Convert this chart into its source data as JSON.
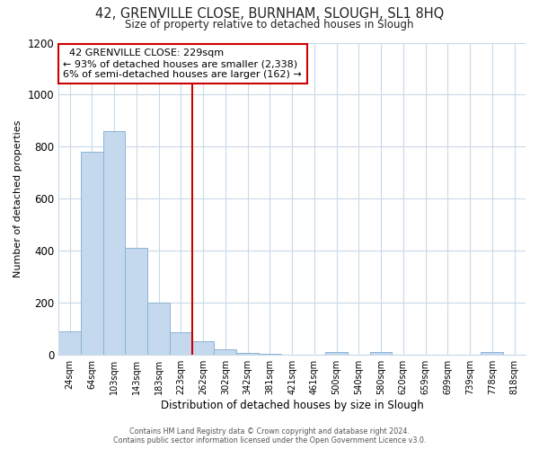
{
  "title": "42, GRENVILLE CLOSE, BURNHAM, SLOUGH, SL1 8HQ",
  "subtitle": "Size of property relative to detached houses in Slough",
  "xlabel": "Distribution of detached houses by size in Slough",
  "ylabel": "Number of detached properties",
  "annotation_line1": "  42 GRENVILLE CLOSE: 229sqm",
  "annotation_line2": "← 93% of detached houses are smaller (2,338)",
  "annotation_line3": "6% of semi-detached houses are larger (162) →",
  "bar_color": "#c5d9ee",
  "bar_edge_color": "#8ab4d4",
  "vline_color": "#cc0000",
  "vline_x": 5.5,
  "categories": [
    "24sqm",
    "64sqm",
    "103sqm",
    "143sqm",
    "183sqm",
    "223sqm",
    "262sqm",
    "302sqm",
    "342sqm",
    "381sqm",
    "421sqm",
    "461sqm",
    "500sqm",
    "540sqm",
    "580sqm",
    "620sqm",
    "659sqm",
    "699sqm",
    "739sqm",
    "778sqm",
    "818sqm"
  ],
  "values": [
    90,
    780,
    860,
    410,
    200,
    85,
    50,
    20,
    5,
    2,
    0,
    0,
    10,
    0,
    10,
    0,
    0,
    0,
    0,
    10,
    0
  ],
  "ylim": [
    0,
    1200
  ],
  "yticks": [
    0,
    200,
    400,
    600,
    800,
    1000,
    1200
  ],
  "footer1": "Contains HM Land Registry data © Crown copyright and database right 2024.",
  "footer2": "Contains public sector information licensed under the Open Government Licence v3.0.",
  "background_color": "#ffffff",
  "grid_color": "#c8daea",
  "title_fontsize": 10.5,
  "subtitle_fontsize": 8.5,
  "annotation_fontsize": 8.0,
  "xlabel_fontsize": 8.5,
  "ylabel_fontsize": 8.0,
  "footer_fontsize": 5.8,
  "xtick_fontsize": 7.0,
  "ytick_fontsize": 8.5
}
